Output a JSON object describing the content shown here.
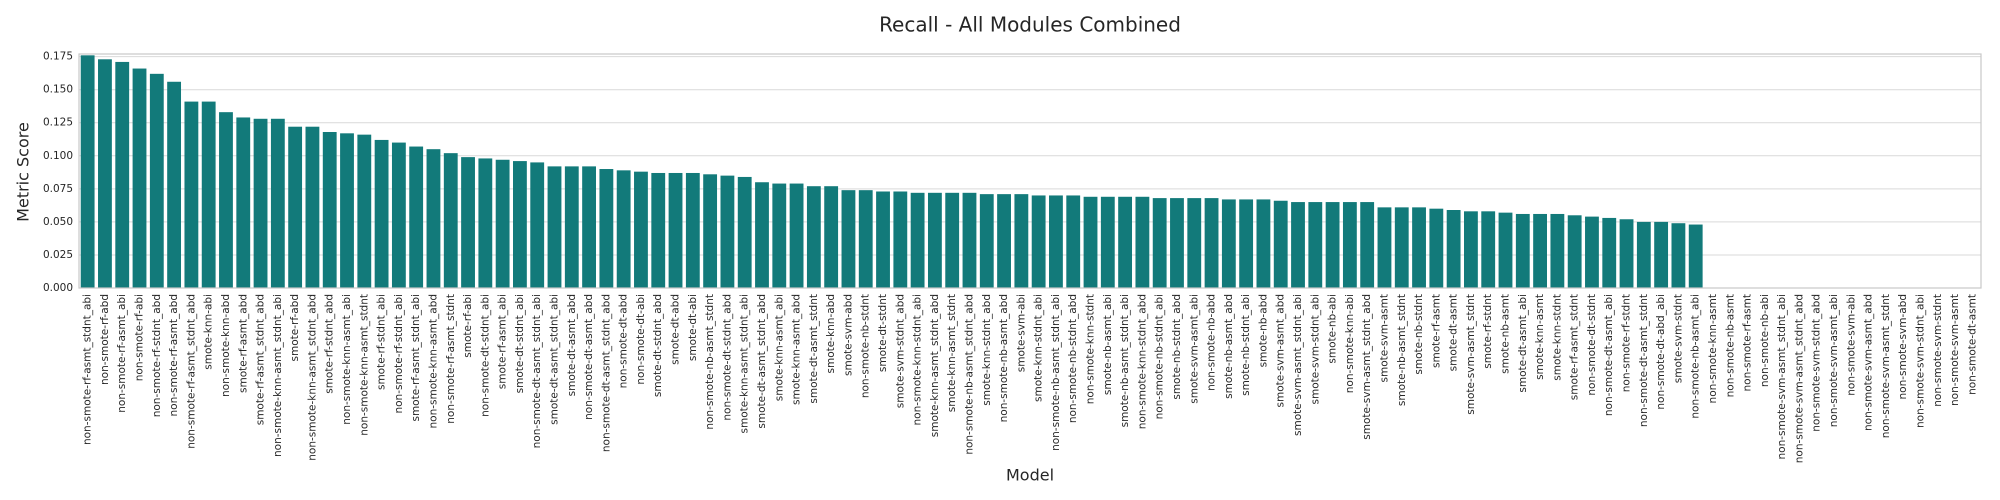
{
  "chart_data": {
    "type": "bar",
    "title": "Recall - All Modules Combined",
    "xlabel": "Model",
    "ylabel": "Metric Score",
    "color": "#127a7a",
    "grid": true,
    "ylim": [
      0,
      0.177
    ],
    "yticks": [
      {
        "value": 0,
        "label": "0.000"
      },
      {
        "value": 0.025,
        "label": "0.025"
      },
      {
        "value": 0.05,
        "label": "0.050"
      },
      {
        "value": 0.075,
        "label": "0.075"
      },
      {
        "value": 0.1,
        "label": "0.100"
      },
      {
        "value": 0.125,
        "label": "0.125"
      },
      {
        "value": 0.15,
        "label": "0.150"
      },
      {
        "value": 0.175,
        "label": "0.175"
      }
    ],
    "categories": [
      "non-smote-rf-asmt_stdnt_abi",
      "non-smote-rf-abd",
      "non-smote-rf-asmt_abi",
      "non-smote-rf-abi",
      "non-smote-rf-stdnt_abd",
      "non-smote-rf-asmt_abd",
      "non-smote-rf-asmt_stdnt_abd",
      "smote-knn-abi",
      "non-smote-knn-abd",
      "smote-rf-asmt_abd",
      "smote-rf-asmt_stdnt_abd",
      "non-smote-knn-asmt_stdnt_abi",
      "smote-rf-abd",
      "non-smote-knn-asmt_stdnt_abd",
      "smote-rf-stdnt_abd",
      "non-smote-knn-asmt_abi",
      "non-smote-knn-asmt_stdnt",
      "smote-rf-stdnt_abi",
      "non-smote-rf-stdnt_abi",
      "smote-rf-asmt_stdnt_abi",
      "non-smote-knn-asmt_abd",
      "non-smote-rf-asmt_stdnt",
      "smote-rf-abi",
      "non-smote-dt-stdnt_abi",
      "smote-rf-asmt_abi",
      "smote-dt-stdnt_abi",
      "non-smote-dt-asmt_stdnt_abi",
      "smote-dt-asmt_stdnt_abi",
      "smote-dt-asmt_abd",
      "non-smote-dt-asmt_abd",
      "non-smote-dt-asmt_stdnt_abd",
      "non-smote-dt-abd",
      "non-smote-dt-abi",
      "smote-dt-stdnt_abd",
      "smote-dt-abd",
      "smote-dt-abi",
      "non-smote-nb-asmt_stdnt",
      "non-smote-dt-stdnt_abd",
      "smote-knn-asmt_stdnt_abi",
      "smote-dt-asmt_stdnt_abd",
      "smote-knn-asmt_abi",
      "smote-knn-asmt_abd",
      "smote-dt-asmt_stdnt",
      "smote-knn-abd",
      "smote-svm-abd",
      "non-smote-nb-stdnt",
      "smote-dt-stdnt",
      "smote-svm-stdnt_abd",
      "non-smote-knn-stdnt_abi",
      "smote-knn-asmt_stdnt_abd",
      "smote-knn-asmt_stdnt",
      "non-smote-nb-asmt_stdnt_abd",
      "smote-knn-stdnt_abd",
      "non-smote-nb-asmt_abd",
      "smote-svm-abi",
      "smote-knn-stdnt_abi",
      "non-smote-nb-asmt_stdnt_abi",
      "non-smote-nb-stdnt_abd",
      "non-smote-knn-stdnt",
      "smote-nb-asmt_abi",
      "smote-nb-asmt_stdnt_abi",
      "non-smote-knn-stdnt_abd",
      "non-smote-nb-stdnt_abi",
      "smote-nb-stdnt_abd",
      "smote-svm-asmt_abi",
      "non-smote-nb-abd",
      "smote-nb-asmt_abd",
      "smote-nb-stdnt_abi",
      "smote-nb-abd",
      "smote-svm-asmt_abd",
      "smote-svm-asmt_stdnt_abi",
      "smote-svm-stdnt_abi",
      "smote-nb-abi",
      "non-smote-knn-abi",
      "smote-svm-asmt_stdnt_abd",
      "smote-svm-asmt",
      "smote-nb-asmt_stdnt",
      "smote-nb-stdnt",
      "smote-rf-asmt",
      "smote-dt-asmt",
      "smote-svm-asmt_stdnt",
      "smote-rf-stdnt",
      "smote-nb-asmt",
      "smote-dt-asmt_abi",
      "smote-knn-asmt",
      "smote-knn-stdnt",
      "smote-rf-asmt_stdnt",
      "non-smote-dt-stdnt",
      "non-smote-dt-asmt_abi",
      "non-smote-rf-stdnt",
      "non-smote-dt-asmt_stdnt",
      "non-smote-dt-abd_abi",
      "smote-svm-stdnt",
      "non-smote-nb-asmt_abi",
      "non-smote-knn-asmt",
      "non-smote-nb-asmt",
      "non-smote-rf-asmt",
      "non-smote-nb-abi",
      "non-smote-svm-asmt_stdnt_abi",
      "non-smote-svm-asmt_stdnt_abd",
      "non-smote-svm-stdnt_abd",
      "non-smote-svm-asmt_abi",
      "non-smote-svm-abi",
      "non-smote-svm-asmt_abd",
      "non-smote-svm-asmt_stdnt",
      "non-smote-svm-abd",
      "non-smote-svm-stdnt_abi",
      "non-smote-svm-stdnt",
      "non-smote-svm-asmt",
      "non-smote-dt-asmt"
    ],
    "values": [
      0.176,
      0.173,
      0.171,
      0.166,
      0.162,
      0.156,
      0.141,
      0.141,
      0.133,
      0.129,
      0.128,
      0.128,
      0.122,
      0.122,
      0.118,
      0.117,
      0.116,
      0.112,
      0.11,
      0.107,
      0.105,
      0.102,
      0.099,
      0.098,
      0.097,
      0.096,
      0.095,
      0.092,
      0.092,
      0.092,
      0.09,
      0.089,
      0.088,
      0.087,
      0.087,
      0.087,
      0.086,
      0.085,
      0.084,
      0.08,
      0.079,
      0.079,
      0.077,
      0.077,
      0.074,
      0.074,
      0.073,
      0.073,
      0.072,
      0.072,
      0.072,
      0.072,
      0.071,
      0.071,
      0.071,
      0.07,
      0.07,
      0.07,
      0.069,
      0.069,
      0.069,
      0.069,
      0.068,
      0.068,
      0.068,
      0.068,
      0.067,
      0.067,
      0.067,
      0.066,
      0.065,
      0.065,
      0.065,
      0.065,
      0.065,
      0.061,
      0.061,
      0.061,
      0.06,
      0.059,
      0.058,
      0.058,
      0.057,
      0.056,
      0.056,
      0.056,
      0.055,
      0.054,
      0.053,
      0.052,
      0.05,
      0.05,
      0.049,
      0.048,
      0,
      0,
      0,
      0,
      0,
      0,
      0,
      0,
      0,
      0,
      0,
      0,
      0,
      0,
      0,
      0
    ]
  }
}
